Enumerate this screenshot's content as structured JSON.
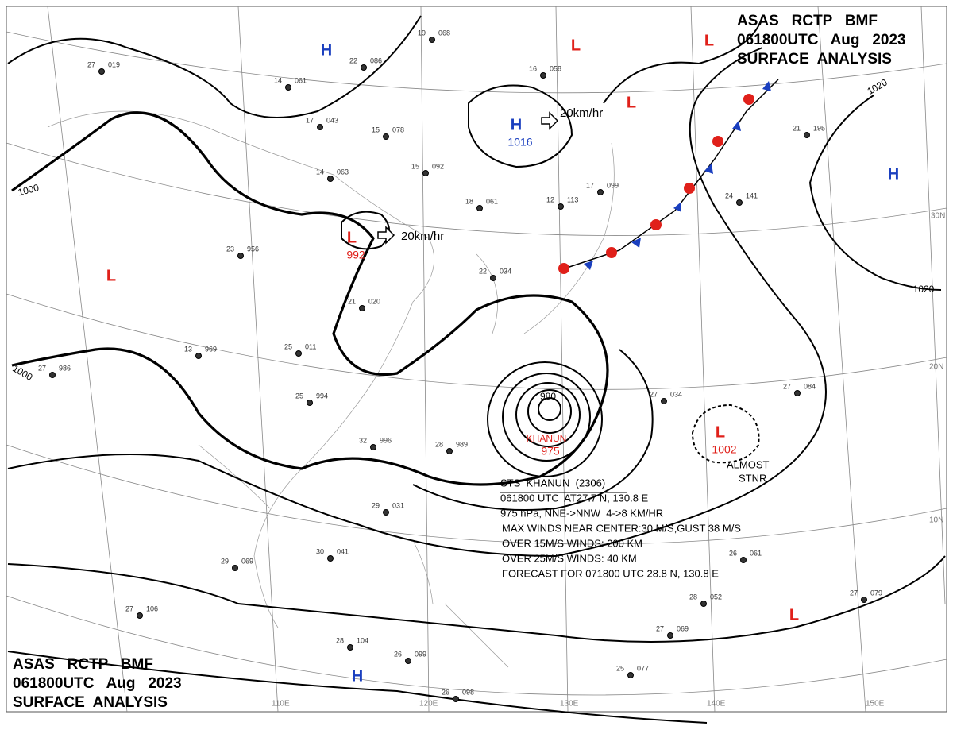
{
  "header": {
    "line1": "ASAS   RCTP   BMF",
    "line2": "061800UTC   Aug   2023",
    "line3": "SURFACE  ANALYSIS"
  },
  "lat_lon_labels": [
    "110E",
    "120E",
    "130E",
    "140E",
    "150E",
    "30N",
    "20N",
    "10N"
  ],
  "isobar_labels": [
    "1000",
    "1000",
    "1020",
    "1020",
    "980"
  ],
  "centers": [
    {
      "symbol": "H"
    },
    {
      "symbol": "L"
    },
    {
      "symbol": "L"
    },
    {
      "symbol": "L"
    },
    {
      "symbol": "H",
      "pressure": "1016"
    },
    {
      "symbol": "H"
    },
    {
      "symbol": "L",
      "pressure": "992"
    },
    {
      "symbol": "L"
    },
    {
      "symbol": "L",
      "pressure": "1002"
    },
    {
      "symbol": "L"
    },
    {
      "symbol": "H"
    },
    {
      "symbol": "KHANUN",
      "pressure": "975"
    }
  ],
  "movements": [
    "20km/hr",
    "20km/hr"
  ],
  "stationary_note": [
    "ALMOST",
    "STNR"
  ],
  "typhoon_info": [
    "STS  KHANUN  (2306)",
    "061800 UTC  AT27.7 N, 130.8 E",
    "975 hPa, NNE->NNW  4->8 KM/HR",
    "MAX WINDS NEAR CENTER:30 M/S,GUST 38 M/S",
    "OVER 15M/S WINDS: 200 KM",
    "OVER 25M/S WINDS: 40 KM",
    "FORECAST FOR 071800 UTC 28.8 N, 130.8 E"
  ],
  "stations": [
    [
      "27",
      "019"
    ],
    [
      "14",
      "061"
    ],
    [
      "17",
      "043"
    ],
    [
      "15",
      "078"
    ],
    [
      "19",
      "068"
    ],
    [
      "22",
      "086"
    ],
    [
      "14",
      "063"
    ],
    [
      "15",
      "092"
    ],
    [
      "23",
      "956"
    ],
    [
      "21",
      "020"
    ],
    [
      "13",
      "969"
    ],
    [
      "25",
      "011"
    ],
    [
      "25",
      "994"
    ],
    [
      "27",
      "986"
    ],
    [
      "32",
      "996"
    ],
    [
      "28",
      "989"
    ],
    [
      "29",
      "031"
    ],
    [
      "30",
      "041"
    ],
    [
      "29",
      "069"
    ],
    [
      "27",
      "106"
    ],
    [
      "28",
      "104"
    ],
    [
      "26",
      "099"
    ],
    [
      "26",
      "098"
    ],
    [
      "25",
      "077"
    ],
    [
      "27",
      "069"
    ],
    [
      "28",
      "052"
    ],
    [
      "27",
      "079"
    ],
    [
      "26",
      "061"
    ],
    [
      "27",
      "084"
    ],
    [
      "27",
      "034"
    ],
    [
      "24",
      "141"
    ],
    [
      "21",
      "195"
    ],
    [
      "12",
      "113"
    ],
    [
      "18",
      "061"
    ],
    [
      "22",
      "034"
    ],
    [
      "16",
      "058"
    ],
    [
      "17",
      "099"
    ]
  ]
}
